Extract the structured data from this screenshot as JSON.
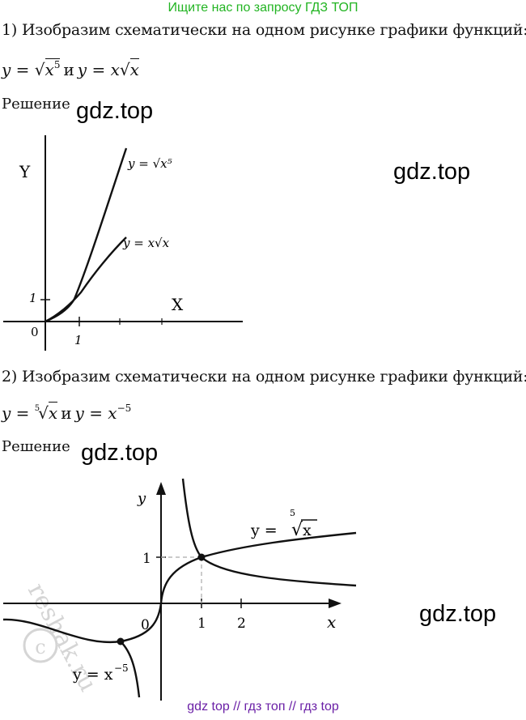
{
  "header": {
    "search_banner": "Ищите нас по запросу ГДЗ ТОП"
  },
  "task1": {
    "text": "1) Изобразим схематически на одном рисунке графики функций:",
    "formula": {
      "f1_left": "y = ",
      "f1_rad": "x",
      "f1_exp": "5",
      "conj": "и",
      "f2_left": "y = x",
      "f2_rad": "x"
    },
    "solution_label": "Решение",
    "graph": {
      "y_axis": "Y",
      "x_axis": "X",
      "tick_y": "1",
      "tick_x": "1",
      "origin": "0",
      "curve1_label": "y = √x⁵",
      "curve2_label": "y = x√x"
    }
  },
  "task2": {
    "text": "2) Изобразим схематически на одном рисунке графики функций:",
    "formula": {
      "f1_left": "y = ",
      "f1_index": "5",
      "f1_rad": "x",
      "conj": "и",
      "f2_left": "y = x",
      "f2_exp": "−5"
    },
    "solution_label": "Решение",
    "graph": {
      "y_axis": "y",
      "x_axis": "x",
      "tick_y": "1",
      "tick_x1": "1",
      "tick_x2": "2",
      "origin": "0",
      "curve1_label": "y = ",
      "curve1_index": "5",
      "curve1_rad": "x",
      "curve2_label": "y = x",
      "curve2_exp": "−5"
    }
  },
  "watermarks": {
    "w1": "gdz.top",
    "w2": "gdz.top",
    "w3": "gdz.top",
    "w4": "gdz.top",
    "reshak": "reshak.ru"
  },
  "footer": {
    "text": "gdz top  //  гдз топ  //  гдз top"
  }
}
